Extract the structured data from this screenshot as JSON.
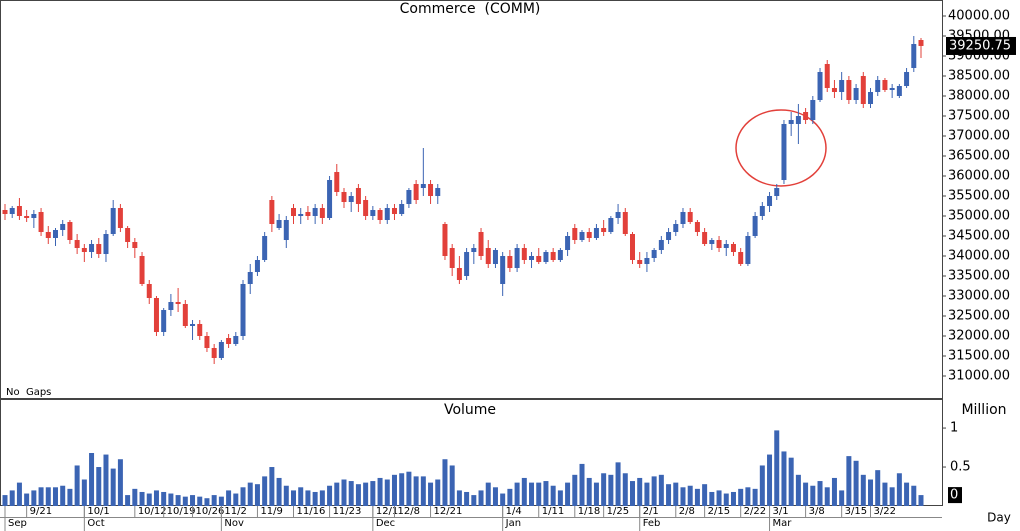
{
  "chart_data": [
    {
      "type": "candlestick",
      "title": "Commerce  (COMM)",
      "annotation": "No  Gaps",
      "up_color": "#3b64b3",
      "down_color": "#e2403a",
      "categories": [
        null,
        null,
        null,
        "9/21",
        null,
        null,
        null,
        null,
        null,
        null,
        null,
        "10/1",
        null,
        null,
        null,
        null,
        null,
        null,
        "10/12",
        null,
        null,
        null,
        "10/19",
        null,
        null,
        null,
        "10/26",
        null,
        null,
        null,
        "11/2",
        null,
        null,
        null,
        null,
        "11/9",
        null,
        null,
        null,
        null,
        "11/16",
        null,
        null,
        null,
        null,
        "11/23",
        null,
        null,
        null,
        null,
        null,
        "12/1",
        null,
        null,
        "12/8",
        null,
        null,
        null,
        null,
        "12/21",
        null,
        null,
        null,
        null,
        null,
        null,
        null,
        null,
        null,
        "1/4",
        null,
        null,
        null,
        null,
        "1/11",
        null,
        null,
        null,
        null,
        "1/18",
        null,
        null,
        null,
        "1/25",
        null,
        null,
        null,
        null,
        "2/1",
        null,
        null,
        null,
        null,
        "2/8",
        null,
        null,
        null,
        "2/15",
        null,
        null,
        null,
        null,
        "2/22",
        null,
        null,
        null,
        "3/1",
        null,
        null,
        null,
        null,
        "3/8",
        null,
        null,
        null,
        null,
        "3/15",
        null,
        null,
        null,
        "3/22",
        null,
        null,
        null,
        null,
        null,
        null,
        null
      ],
      "month_labels": [
        "Sep",
        null,
        null,
        null,
        null,
        null,
        null,
        null,
        null,
        null,
        null,
        "Oct",
        null,
        null,
        null,
        null,
        null,
        null,
        null,
        null,
        null,
        null,
        null,
        null,
        null,
        null,
        null,
        null,
        null,
        null,
        "Nov",
        null,
        null,
        null,
        null,
        null,
        null,
        null,
        null,
        null,
        null,
        null,
        null,
        null,
        null,
        null,
        null,
        null,
        null,
        null,
        null,
        "Dec",
        null,
        null,
        null,
        null,
        null,
        null,
        null,
        null,
        null,
        null,
        null,
        null,
        null,
        null,
        null,
        null,
        null,
        "Jan",
        null,
        null,
        null,
        null,
        null,
        null,
        null,
        null,
        null,
        null,
        null,
        null,
        null,
        null,
        null,
        null,
        null,
        null,
        "Feb",
        null,
        null,
        null,
        null,
        null,
        null,
        null,
        null,
        null,
        null,
        null,
        null,
        null,
        null,
        null,
        null,
        null,
        "Mar",
        null,
        null,
        null,
        null,
        null,
        null,
        null,
        null,
        null,
        null,
        null,
        null,
        null,
        null,
        null,
        null,
        null,
        null,
        null,
        null,
        null
      ],
      "ohlc": [
        [
          35150,
          35300,
          34900,
          35050
        ],
        [
          35050,
          35250,
          34950,
          35200
        ],
        [
          35250,
          35450,
          34900,
          35000
        ],
        [
          35000,
          35150,
          34850,
          34950
        ],
        [
          34950,
          35150,
          34700,
          35050
        ],
        [
          35100,
          35200,
          34500,
          34600
        ],
        [
          34600,
          34750,
          34300,
          34450
        ],
        [
          34450,
          34700,
          34250,
          34650
        ],
        [
          34650,
          34900,
          34500,
          34800
        ],
        [
          34850,
          34900,
          34300,
          34400
        ],
        [
          34400,
          34550,
          34050,
          34200
        ],
        [
          34200,
          34300,
          33850,
          34100
        ],
        [
          34100,
          34400,
          33950,
          34300
        ],
        [
          34300,
          34450,
          33950,
          34050
        ],
        [
          34050,
          34650,
          33850,
          34550
        ],
        [
          34550,
          35400,
          34500,
          35200
        ],
        [
          35200,
          35300,
          34600,
          34700
        ],
        [
          34700,
          34750,
          34200,
          34350
        ],
        [
          34350,
          34450,
          33950,
          34200
        ],
        [
          34000,
          34100,
          33250,
          33300
        ],
        [
          33300,
          33400,
          32800,
          32950
        ],
        [
          32950,
          33000,
          32000,
          32100
        ],
        [
          32100,
          32700,
          32000,
          32650
        ],
        [
          32650,
          33050,
          32500,
          32850
        ],
        [
          32850,
          33200,
          32600,
          32800
        ],
        [
          32800,
          32900,
          32200,
          32250
        ],
        [
          32250,
          32400,
          31900,
          32300
        ],
        [
          32300,
          32400,
          31900,
          32000
        ],
        [
          32000,
          32100,
          31600,
          31700
        ],
        [
          31700,
          31800,
          31300,
          31450
        ],
        [
          31450,
          31900,
          31400,
          31850
        ],
        [
          31950,
          32050,
          31700,
          31800
        ],
        [
          31800,
          32100,
          31750,
          32000
        ],
        [
          32000,
          33400,
          31900,
          33300
        ],
        [
          33300,
          33800,
          33050,
          33600
        ],
        [
          33600,
          34000,
          33500,
          33900
        ],
        [
          33900,
          34600,
          33850,
          34500
        ],
        [
          35400,
          35500,
          34600,
          34800
        ],
        [
          34700,
          35050,
          34650,
          34900
        ],
        [
          34400,
          35000,
          34200,
          34900
        ],
        [
          35200,
          35300,
          34800,
          35000
        ],
        [
          35000,
          35200,
          34800,
          35050
        ],
        [
          35100,
          35250,
          34900,
          35000
        ],
        [
          35000,
          35300,
          34800,
          35200
        ],
        [
          35200,
          35300,
          34800,
          34950
        ],
        [
          34950,
          36000,
          34900,
          35900
        ],
        [
          36100,
          36300,
          35500,
          35600
        ],
        [
          35600,
          35700,
          35200,
          35350
        ],
        [
          35350,
          35600,
          35100,
          35500
        ],
        [
          35700,
          35800,
          35100,
          35300
        ],
        [
          35400,
          35500,
          34900,
          35000
        ],
        [
          35000,
          35250,
          34900,
          35150
        ],
        [
          35150,
          35200,
          34800,
          34900
        ],
        [
          34900,
          35300,
          34800,
          35200
        ],
        [
          35200,
          35300,
          34900,
          35050
        ],
        [
          35050,
          35400,
          35000,
          35300
        ],
        [
          35300,
          35700,
          35200,
          35650
        ],
        [
          35800,
          35900,
          35300,
          35400
        ],
        [
          35700,
          36700,
          35500,
          35800
        ],
        [
          35800,
          35900,
          35300,
          35500
        ],
        [
          35500,
          35800,
          35300,
          35700
        ],
        [
          34800,
          34850,
          33900,
          34000
        ],
        [
          34200,
          34300,
          33500,
          33700
        ],
        [
          33700,
          34000,
          33300,
          33400
        ],
        [
          33500,
          34200,
          33400,
          34100
        ],
        [
          34100,
          34300,
          33800,
          34200
        ],
        [
          34600,
          34700,
          33900,
          34000
        ],
        [
          34200,
          34400,
          33700,
          33800
        ],
        [
          33800,
          34200,
          33700,
          34150
        ],
        [
          33300,
          34100,
          33000,
          34000
        ],
        [
          34000,
          34150,
          33600,
          33700
        ],
        [
          33700,
          34300,
          33600,
          34200
        ],
        [
          34200,
          34300,
          33800,
          33900
        ],
        [
          33900,
          34100,
          33700,
          34000
        ],
        [
          34000,
          34200,
          33800,
          33850
        ],
        [
          33850,
          34150,
          33800,
          34100
        ],
        [
          34100,
          34200,
          33850,
          33900
        ],
        [
          33900,
          34200,
          33850,
          34150
        ],
        [
          34150,
          34600,
          34000,
          34500
        ],
        [
          34700,
          34800,
          34300,
          34400
        ],
        [
          34400,
          34650,
          34350,
          34600
        ],
        [
          34600,
          34700,
          34350,
          34450
        ],
        [
          34450,
          34800,
          34400,
          34700
        ],
        [
          34700,
          34900,
          34500,
          34600
        ],
        [
          34600,
          35000,
          34550,
          34950
        ],
        [
          34950,
          35300,
          34800,
          35100
        ],
        [
          35100,
          35200,
          34500,
          34550
        ],
        [
          34550,
          34600,
          33800,
          33900
        ],
        [
          33900,
          34100,
          33700,
          33800
        ],
        [
          33800,
          34100,
          33600,
          33950
        ],
        [
          33950,
          34200,
          33850,
          34150
        ],
        [
          34150,
          34500,
          34050,
          34400
        ],
        [
          34400,
          34700,
          34300,
          34600
        ],
        [
          34600,
          34900,
          34500,
          34800
        ],
        [
          34800,
          35200,
          34700,
          35100
        ],
        [
          35100,
          35200,
          34800,
          34850
        ],
        [
          34850,
          34900,
          34500,
          34600
        ],
        [
          34600,
          34700,
          34250,
          34300
        ],
        [
          34300,
          34450,
          34150,
          34400
        ],
        [
          34400,
          34500,
          34100,
          34200
        ],
        [
          34200,
          34400,
          34000,
          34300
        ],
        [
          34300,
          34350,
          34000,
          34100
        ],
        [
          34100,
          34200,
          33750,
          33800
        ],
        [
          33800,
          34600,
          33750,
          34500
        ],
        [
          34500,
          35100,
          34450,
          35000
        ],
        [
          35000,
          35350,
          34900,
          35250
        ],
        [
          35250,
          35600,
          35100,
          35500
        ],
        [
          35500,
          35800,
          35400,
          35700
        ],
        [
          35900,
          37400,
          35800,
          37300
        ],
        [
          37300,
          37600,
          37000,
          37400
        ],
        [
          37300,
          37800,
          36800,
          37500
        ],
        [
          37600,
          37700,
          37300,
          37400
        ],
        [
          37400,
          38000,
          37300,
          37900
        ],
        [
          37900,
          38700,
          37850,
          38600
        ],
        [
          38800,
          38900,
          38100,
          38200
        ],
        [
          38200,
          38400,
          37950,
          38100
        ],
        [
          38100,
          38600,
          37900,
          38400
        ],
        [
          38400,
          38500,
          37800,
          37900
        ],
        [
          37900,
          38300,
          37800,
          38200
        ],
        [
          38500,
          38600,
          37700,
          37800
        ],
        [
          37800,
          38200,
          37700,
          38100
        ],
        [
          38100,
          38500,
          38000,
          38400
        ],
        [
          38400,
          38450,
          38100,
          38150
        ],
        [
          38150,
          38300,
          37950,
          38200
        ],
        [
          38000,
          38300,
          37950,
          38250
        ],
        [
          38250,
          38700,
          38200,
          38600
        ],
        [
          38700,
          39500,
          38600,
          39300
        ],
        [
          39400,
          39450,
          38950,
          39250.75
        ]
      ],
      "last_label": "39250.75",
      "ylim": [
        30450,
        40400
      ],
      "yticks": [
        {
          "value": 31000,
          "label": "31000.00"
        },
        {
          "value": 31500,
          "label": "31500.00"
        },
        {
          "value": 32000,
          "label": "32000.00"
        },
        {
          "value": 32500,
          "label": "32500.00"
        },
        {
          "value": 33000,
          "label": "33000.00"
        },
        {
          "value": 33500,
          "label": "33500.00"
        },
        {
          "value": 34000,
          "label": "34000.00"
        },
        {
          "value": 34500,
          "label": "34500.00"
        },
        {
          "value": 35000,
          "label": "35000.00"
        },
        {
          "value": 35500,
          "label": "35500.00"
        },
        {
          "value": 36000,
          "label": "36000.00"
        },
        {
          "value": 36500,
          "label": "36500.00"
        },
        {
          "value": 37000,
          "label": "37000.00"
        },
        {
          "value": 37500,
          "label": "37500.00"
        },
        {
          "value": 38000,
          "label": "38000.00"
        },
        {
          "value": 38500,
          "label": "38500.00"
        },
        {
          "value": 39000,
          "label": "39000.00"
        },
        {
          "value": 39500,
          "label": "39500.00"
        },
        {
          "value": 40000,
          "label": "40000.00"
        }
      ]
    },
    {
      "type": "bar",
      "title": "Volume",
      "y_axis_label": "Million",
      "x_axis_label": "Day",
      "color": "#3b64b3",
      "values": [
        0.14,
        0.2,
        0.3,
        0.16,
        0.2,
        0.24,
        0.24,
        0.24,
        0.26,
        0.22,
        0.52,
        0.34,
        0.68,
        0.5,
        0.66,
        0.48,
        0.6,
        0.14,
        0.22,
        0.18,
        0.16,
        0.2,
        0.18,
        0.16,
        0.14,
        0.12,
        0.14,
        0.12,
        0.1,
        0.14,
        0.12,
        0.2,
        0.16,
        0.24,
        0.3,
        0.28,
        0.38,
        0.5,
        0.36,
        0.26,
        0.2,
        0.24,
        0.2,
        0.18,
        0.2,
        0.26,
        0.3,
        0.34,
        0.32,
        0.28,
        0.3,
        0.32,
        0.36,
        0.34,
        0.4,
        0.42,
        0.44,
        0.38,
        0.38,
        0.3,
        0.34,
        0.6,
        0.52,
        0.2,
        0.18,
        0.14,
        0.2,
        0.3,
        0.24,
        0.16,
        0.22,
        0.3,
        0.36,
        0.3,
        0.3,
        0.32,
        0.26,
        0.2,
        0.3,
        0.4,
        0.54,
        0.36,
        0.3,
        0.42,
        0.4,
        0.56,
        0.42,
        0.32,
        0.36,
        0.3,
        0.38,
        0.4,
        0.28,
        0.3,
        0.24,
        0.26,
        0.22,
        0.28,
        0.18,
        0.2,
        0.16,
        0.18,
        0.22,
        0.24,
        0.22,
        0.52,
        0.66,
        0.97,
        0.7,
        0.62,
        0.4,
        0.3,
        0.26,
        0.32,
        0.24,
        0.36,
        0.2,
        0.64,
        0.58,
        0.4,
        0.34,
        0.46,
        0.3,
        0.24,
        0.42,
        0.3,
        0.26,
        0.14
      ],
      "last_label": "0",
      "ylim": [
        0,
        1.36
      ],
      "yticks": [
        0.5,
        1
      ]
    }
  ]
}
